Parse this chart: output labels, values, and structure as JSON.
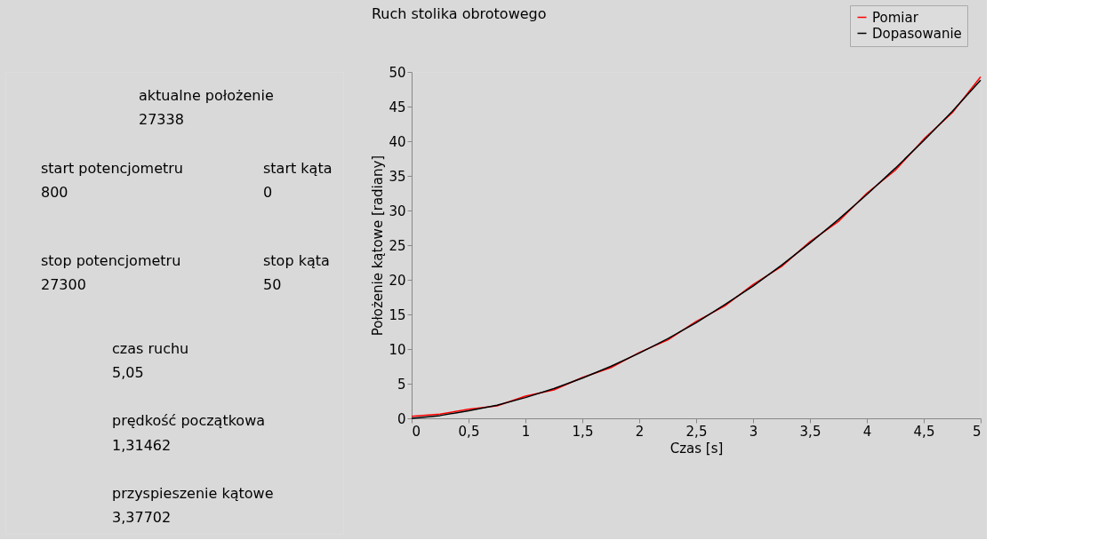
{
  "chart_data": [
    {
      "type": "other",
      "annotations": [
        "aktualne położenie",
        "27338",
        "start  potencjometru",
        "800",
        "start kąta",
        "0",
        "stop  potencjometru",
        "27300",
        "stop kąta",
        "50",
        "czas ruchu",
        "5,05",
        "prędkość początkowa",
        "1,31462",
        "przyspieszenie kątowe",
        "3,37702"
      ]
    },
    {
      "type": "line",
      "title": "Ruch stolika obrotowego",
      "xlabel": "Czas [s]",
      "ylabel": "Położenie kątowe [radiany]",
      "x": [
        0,
        0.25,
        0.5,
        0.75,
        1,
        1.25,
        1.5,
        1.75,
        2,
        2.25,
        2.5,
        2.75,
        3,
        3.25,
        3.5,
        3.75,
        4,
        4.25,
        4.5,
        4.75,
        5
      ],
      "series": [
        {
          "name": "Pomiar",
          "color": "#ff0000",
          "values": [
            0.3,
            0.6,
            1.3,
            1.8,
            3.2,
            4.1,
            5.9,
            7.3,
            9.5,
            11.3,
            14.0,
            16.2,
            19.3,
            21.9,
            25.5,
            28.4,
            32.5,
            35.8,
            40.3,
            44.1,
            49.3
          ]
        },
        {
          "name": "Dopasowanie",
          "color": "#000000",
          "values": [
            0,
            0.4,
            1.1,
            1.9,
            3.0,
            4.3,
            5.8,
            7.5,
            9.4,
            11.5,
            13.8,
            16.4,
            19.1,
            22.1,
            25.3,
            28.7,
            32.3,
            36.1,
            40.1,
            44.3,
            48.8
          ]
        }
      ],
      "xlim": [
        0,
        5
      ],
      "ylim": [
        0,
        50
      ],
      "xticks": [
        0,
        {
          "value": 0.5,
          "label": "0,5"
        },
        1,
        {
          "value": 1.5,
          "label": "1,5"
        },
        2,
        {
          "value": 2.5,
          "label": "2,5"
        },
        3,
        {
          "value": 3.5,
          "label": "3,5"
        },
        4,
        {
          "value": 4.5,
          "label": "4,5"
        },
        5
      ],
      "yticks": [
        0,
        5,
        10,
        15,
        20,
        25,
        30,
        35,
        40,
        45,
        50
      ],
      "legend": "top right",
      "grid": false,
      "marker": "none",
      "line_style": "solid"
    }
  ]
}
